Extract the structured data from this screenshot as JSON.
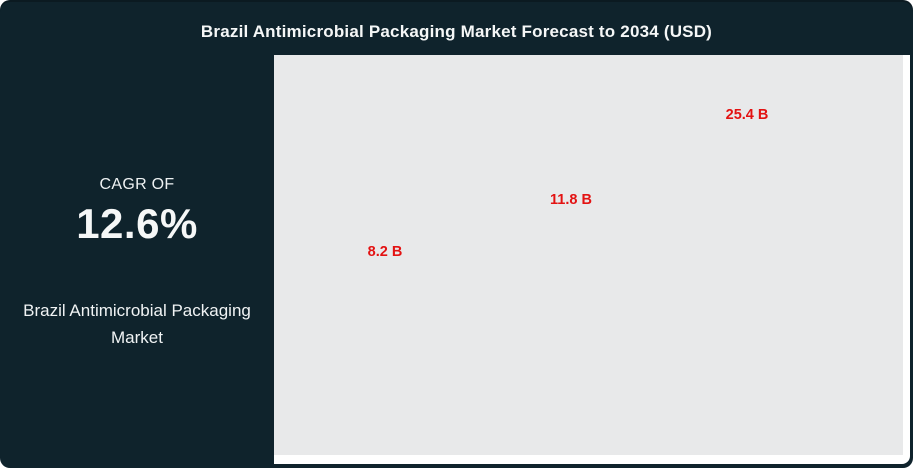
{
  "header": {
    "title": "Brazil Antimicrobial Packaging Market Forecast to 2034 (USD)"
  },
  "sidebar": {
    "cagr_label": "CAGR OF",
    "cagr_value": "12.6%",
    "market_name": "Brazil Antimicrobial Packaging Market"
  },
  "chart_data": {
    "type": "bar",
    "title": "Brazil Antimicrobial Packaging Market Forecast to 2034 (USD)",
    "values": [
      8.2,
      11.8,
      25.4
    ],
    "data_labels": [
      "8.2 B",
      "11.8 B",
      "25.4 B"
    ],
    "unit": "USD billions",
    "xlabel": "",
    "ylabel": "",
    "axis_tick_labels_visible": false,
    "gridlines": false,
    "legend": false,
    "bars_visible": false,
    "plot_bg": "#e8e9ea",
    "label_color": "#e31212"
  },
  "colors": {
    "card_bg": "#0f232c",
    "plot_bg": "#e8e9ea",
    "label_red": "#e31212",
    "text_white": "#f5f7f7"
  }
}
